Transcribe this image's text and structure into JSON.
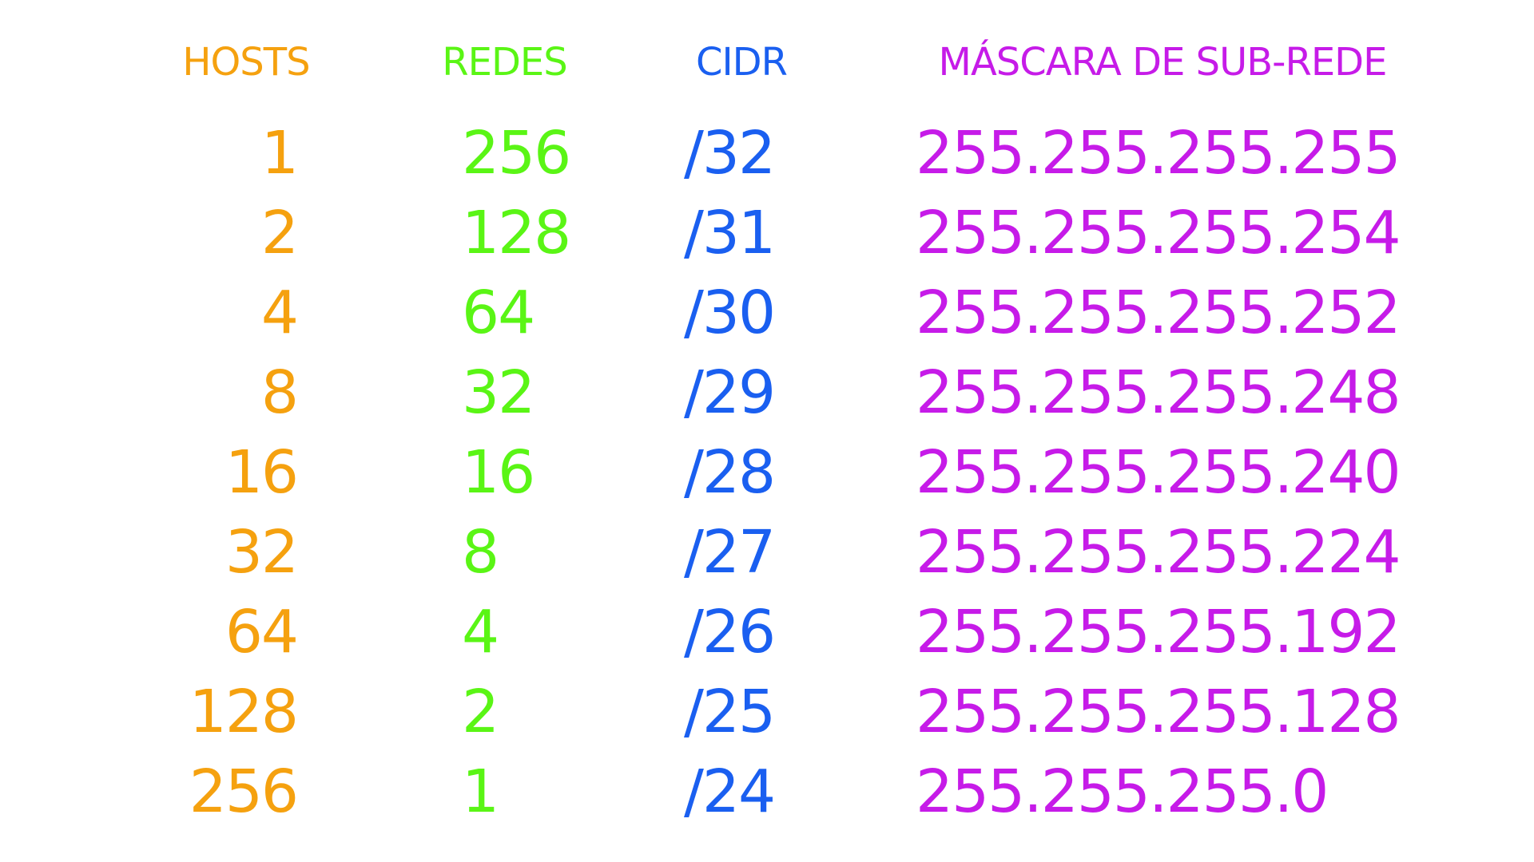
{
  "colors": {
    "hosts": "#f5a10f",
    "redes": "#5af515",
    "cidr": "#1a5ff0",
    "mask": "#c61be8"
  },
  "headers": {
    "hosts": "HOSTS",
    "redes": "REDES",
    "cidr": "CIDR",
    "mask": "MÁSCARA DE SUB-REDE"
  },
  "rows": [
    {
      "hosts": "1",
      "redes": "256",
      "cidr": "/32",
      "mask": "255.255.255.255"
    },
    {
      "hosts": "2",
      "redes": "128",
      "cidr": "/31",
      "mask": "255.255.255.254"
    },
    {
      "hosts": "4",
      "redes": "64",
      "cidr": "/30",
      "mask": "255.255.255.252"
    },
    {
      "hosts": "8",
      "redes": "32",
      "cidr": "/29",
      "mask": "255.255.255.248"
    },
    {
      "hosts": "16",
      "redes": "16",
      "cidr": "/28",
      "mask": "255.255.255.240"
    },
    {
      "hosts": "32",
      "redes": "8",
      "cidr": "/27",
      "mask": "255.255.255.224"
    },
    {
      "hosts": "64",
      "redes": "4",
      "cidr": "/26",
      "mask": "255.255.255.192"
    },
    {
      "hosts": "128",
      "redes": "2",
      "cidr": "/25",
      "mask": "255.255.255.128"
    },
    {
      "hosts": "256",
      "redes": "1",
      "cidr": "/24",
      "mask": "255.255.255.0"
    }
  ]
}
